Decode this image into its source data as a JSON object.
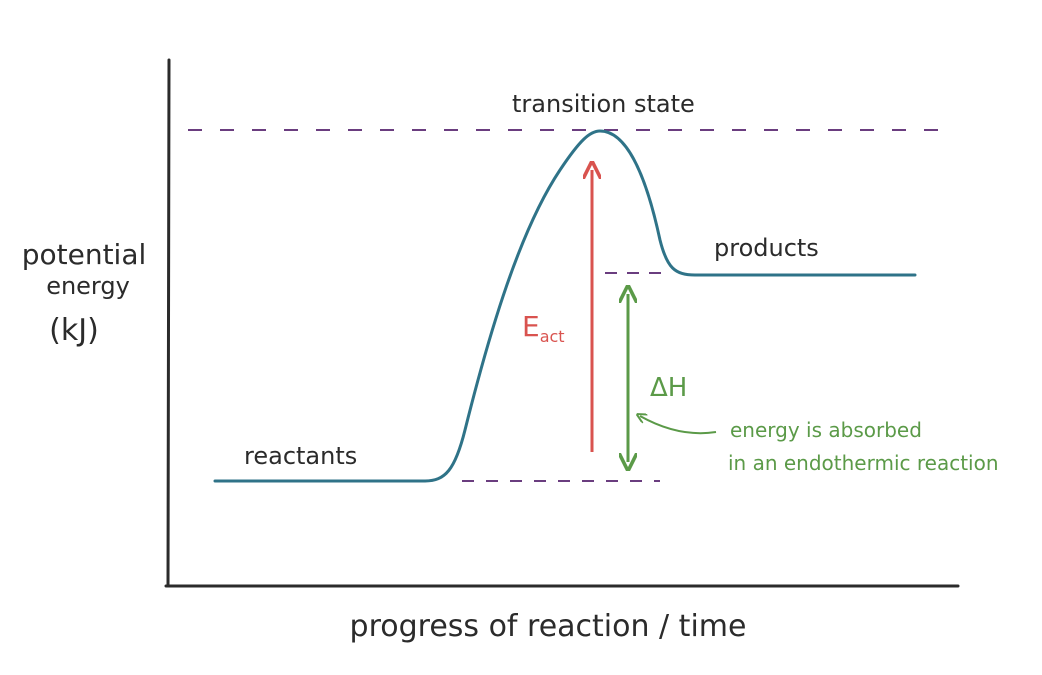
{
  "diagram": {
    "title": "",
    "y_axis_label": {
      "line1": "potential",
      "line2": "energy",
      "line3": "(kJ)"
    },
    "x_axis_label": "progress of reaction / time",
    "labels": {
      "transition_state": "transition state",
      "reactants": "reactants",
      "products": "products",
      "activation_energy_main": "E",
      "activation_energy_sub": "act",
      "enthalpy_change": "ΔH",
      "note_line1": "energy is absorbed",
      "note_line2": "in an endothermic reaction"
    },
    "colors": {
      "axis": "#2b2b2b",
      "curve": "#2f7388",
      "dashed_guides": "#6a3d7f",
      "activation_arrow": "#d9534f",
      "enthalpy_arrow": "#5b9a48"
    }
  }
}
